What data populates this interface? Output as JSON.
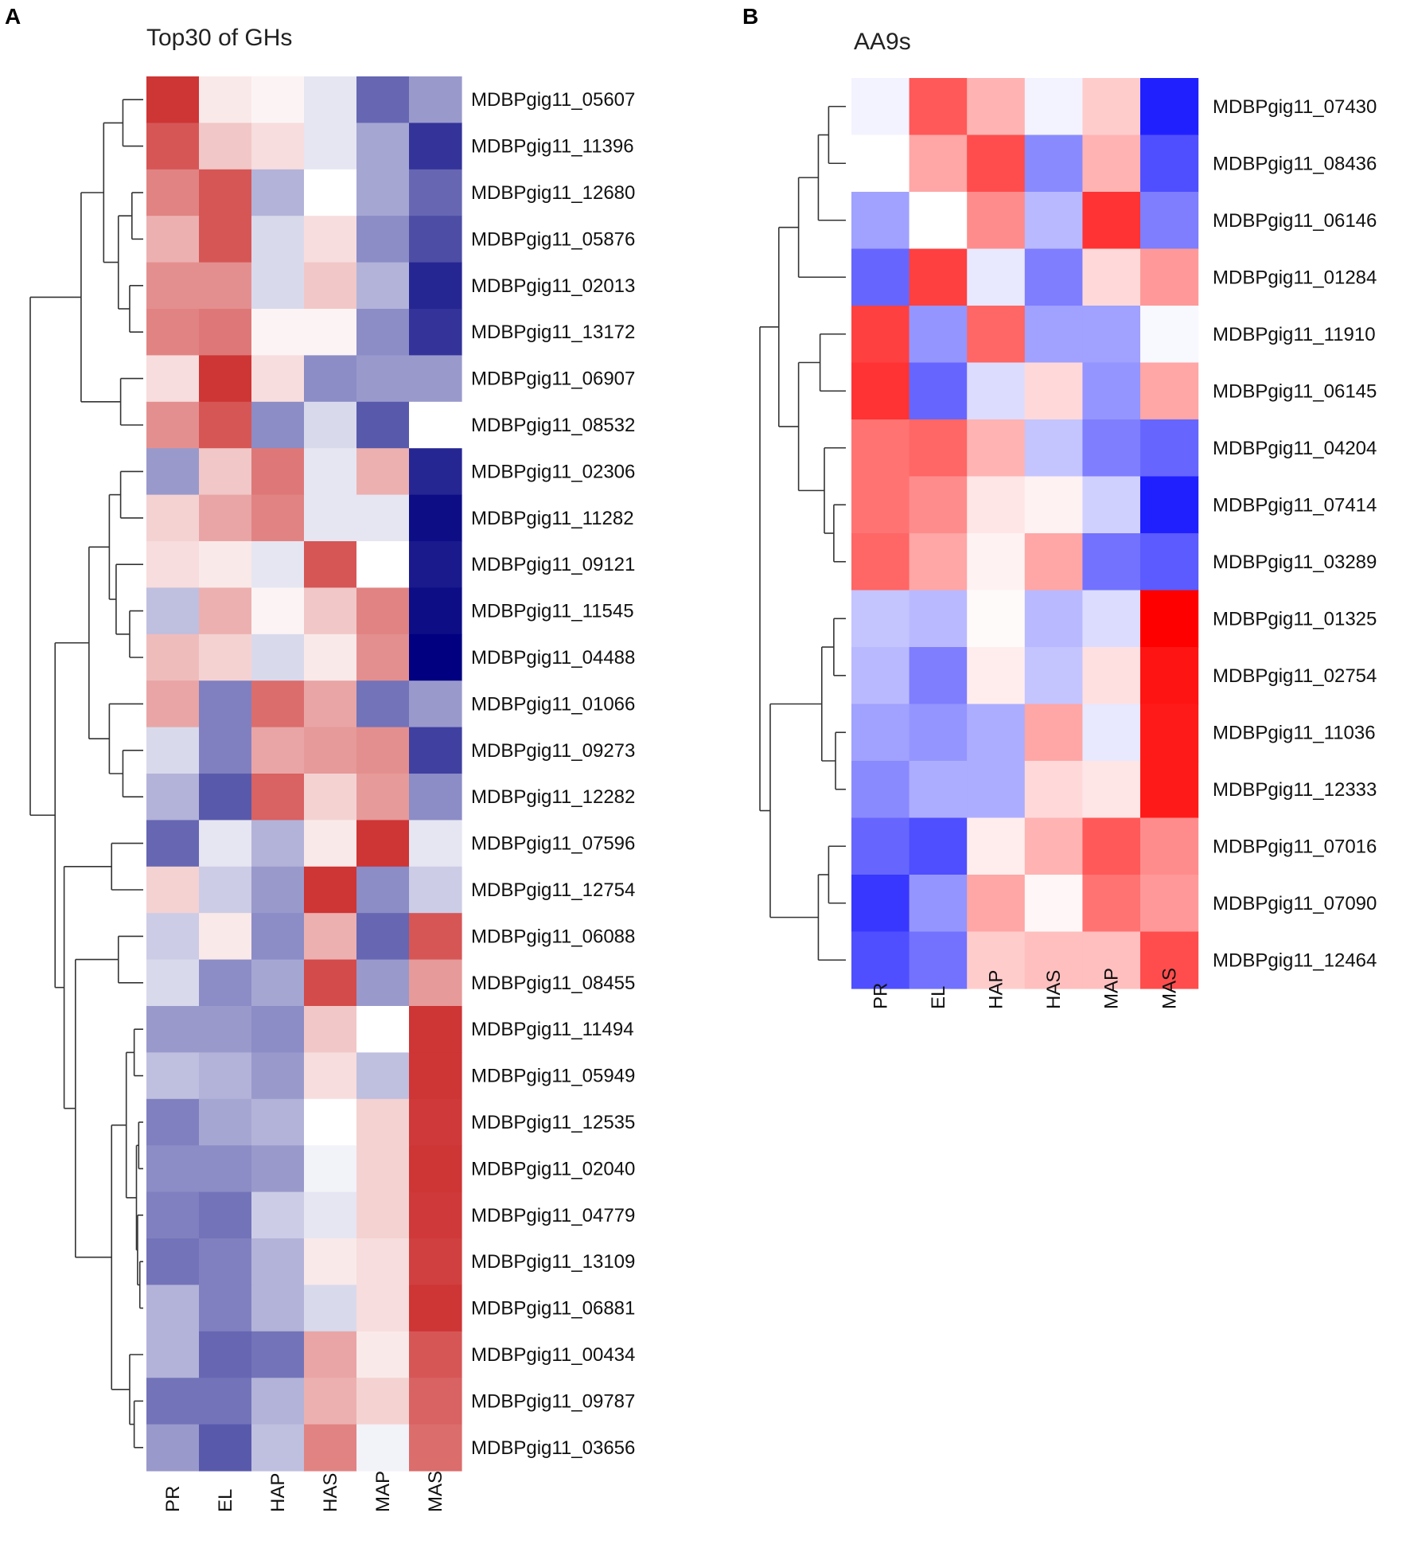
{
  "chart_data": [
    {
      "type": "heatmap",
      "panel": "A",
      "title": "Top30 of GHs",
      "columns": [
        "PR",
        "EL",
        "HAP",
        "HAS",
        "MAP",
        "MAS"
      ],
      "rows": [
        "MDBPgig11_05607",
        "MDBPgig11_11396",
        "MDBPgig11_12680",
        "MDBPgig11_05876",
        "MDBPgig11_02013",
        "MDBPgig11_13172",
        "MDBPgig11_06907",
        "MDBPgig11_08532",
        "MDBPgig11_02306",
        "MDBPgig11_11282",
        "MDBPgig11_09121",
        "MDBPgig11_11545",
        "MDBPgig11_04488",
        "MDBPgig11_01066",
        "MDBPgig11_09273",
        "MDBPgig11_12282",
        "MDBPgig11_07596",
        "MDBPgig11_12754",
        "MDBPgig11_06088",
        "MDBPgig11_08455",
        "MDBPgig11_11494",
        "MDBPgig11_05949",
        "MDBPgig11_12535",
        "MDBPgig11_02040",
        "MDBPgig11_04779",
        "MDBPgig11_13109",
        "MDBPgig11_06881",
        "MDBPgig11_00434",
        "MDBPgig11_09787",
        "MDBPgig11_03656"
      ],
      "scale": {
        "min": -1,
        "max": 1,
        "low_color": "#000080",
        "mid_color": "#ffffff",
        "high_color": "#c81e1e"
      },
      "values": [
        [
          0.9,
          0.1,
          0.05,
          -0.1,
          -0.6,
          -0.4
        ],
        [
          0.75,
          0.25,
          0.15,
          -0.1,
          -0.35,
          -0.8
        ],
        [
          0.55,
          0.75,
          -0.3,
          0.0,
          -0.35,
          -0.6
        ],
        [
          0.35,
          0.75,
          -0.15,
          0.15,
          -0.45,
          -0.7
        ],
        [
          0.5,
          0.5,
          -0.15,
          0.25,
          -0.3,
          -0.85
        ],
        [
          0.55,
          0.6,
          0.05,
          0.05,
          -0.45,
          -0.8
        ],
        [
          0.15,
          0.9,
          0.15,
          -0.45,
          -0.4,
          -0.4
        ],
        [
          0.5,
          0.75,
          -0.45,
          -0.15,
          -0.65,
          0.0
        ],
        [
          -0.4,
          0.25,
          0.6,
          -0.1,
          0.35,
          -0.85
        ],
        [
          0.2,
          0.4,
          0.55,
          -0.1,
          -0.1,
          -0.95
        ],
        [
          0.15,
          0.1,
          -0.1,
          0.75,
          0.0,
          -0.9
        ],
        [
          -0.25,
          0.35,
          0.05,
          0.25,
          0.55,
          -0.95
        ],
        [
          0.3,
          0.2,
          -0.15,
          0.1,
          0.5,
          -1.0
        ],
        [
          0.4,
          -0.5,
          0.65,
          0.4,
          -0.55,
          -0.4
        ],
        [
          -0.15,
          -0.5,
          0.4,
          0.45,
          0.5,
          -0.75
        ],
        [
          -0.3,
          -0.65,
          0.7,
          0.2,
          0.45,
          -0.45
        ],
        [
          -0.6,
          -0.1,
          -0.3,
          0.1,
          0.9,
          -0.1
        ],
        [
          0.2,
          -0.2,
          -0.4,
          0.9,
          -0.45,
          -0.2
        ],
        [
          -0.2,
          0.1,
          -0.45,
          0.35,
          -0.6,
          0.75
        ],
        [
          -0.15,
          -0.45,
          -0.35,
          0.8,
          -0.4,
          0.45
        ],
        [
          -0.4,
          -0.4,
          -0.45,
          0.25,
          0.0,
          0.9
        ],
        [
          -0.25,
          -0.3,
          -0.4,
          0.15,
          -0.25,
          0.9
        ],
        [
          -0.5,
          -0.35,
          -0.3,
          0.0,
          0.2,
          0.88
        ],
        [
          -0.45,
          -0.45,
          -0.4,
          -0.05,
          0.2,
          0.9
        ],
        [
          -0.5,
          -0.55,
          -0.2,
          -0.1,
          0.2,
          0.88
        ],
        [
          -0.55,
          -0.5,
          -0.3,
          0.1,
          0.15,
          0.85
        ],
        [
          -0.3,
          -0.5,
          -0.3,
          -0.15,
          0.15,
          0.9
        ],
        [
          -0.3,
          -0.6,
          -0.55,
          0.4,
          0.1,
          0.75
        ],
        [
          -0.55,
          -0.55,
          -0.3,
          0.35,
          0.2,
          0.7
        ],
        [
          -0.4,
          -0.65,
          -0.25,
          0.55,
          -0.05,
          0.65
        ]
      ]
    },
    {
      "type": "heatmap",
      "panel": "B",
      "title": "AA9s",
      "columns": [
        "PR",
        "EL",
        "HAP",
        "HAS",
        "MAP",
        "MAS"
      ],
      "rows": [
        "MDBPgig11_07430",
        "MDBPgig11_08436",
        "MDBPgig11_06146",
        "MDBPgig11_01284",
        "MDBPgig11_11910",
        "MDBPgig11_06145",
        "MDBPgig11_04204",
        "MDBPgig11_07414",
        "MDBPgig11_03289",
        "MDBPgig11_01325",
        "MDBPgig11_02754",
        "MDBPgig11_11036",
        "MDBPgig11_12333",
        "MDBPgig11_07016",
        "MDBPgig11_07090",
        "MDBPgig11_12464"
      ],
      "scale": {
        "min": -1,
        "max": 1,
        "low_color": "#1414ff",
        "mid_color": "#ffffff",
        "high_color": "#ff0000"
      },
      "values": [
        [
          -0.05,
          0.65,
          0.3,
          -0.05,
          0.2,
          -0.95
        ],
        [
          0.0,
          0.35,
          0.7,
          -0.5,
          0.3,
          -0.75
        ],
        [
          -0.4,
          0.0,
          0.45,
          -0.3,
          0.8,
          -0.55
        ],
        [
          -0.65,
          0.75,
          -0.1,
          -0.55,
          0.15,
          0.4
        ],
        [
          0.75,
          -0.45,
          0.6,
          -0.4,
          -0.4,
          -0.03
        ],
        [
          0.8,
          -0.65,
          -0.15,
          0.15,
          -0.45,
          0.35
        ],
        [
          0.55,
          0.6,
          0.3,
          -0.25,
          -0.55,
          -0.65
        ],
        [
          0.55,
          0.45,
          0.1,
          0.05,
          -0.2,
          -0.95
        ],
        [
          0.6,
          0.35,
          0.05,
          0.35,
          -0.6,
          -0.7
        ],
        [
          -0.25,
          -0.3,
          0.02,
          -0.3,
          -0.15,
          1.0
        ],
        [
          -0.3,
          -0.55,
          0.07,
          -0.25,
          0.12,
          0.92
        ],
        [
          -0.4,
          -0.45,
          -0.35,
          0.35,
          -0.1,
          0.9
        ],
        [
          -0.5,
          -0.35,
          -0.35,
          0.15,
          0.1,
          0.9
        ],
        [
          -0.65,
          -0.75,
          0.07,
          0.3,
          0.65,
          0.45
        ],
        [
          -0.85,
          -0.45,
          0.35,
          0.03,
          0.55,
          0.4
        ],
        [
          -0.75,
          -0.6,
          0.2,
          0.25,
          0.25,
          0.7
        ]
      ]
    }
  ],
  "panels": {
    "a": {
      "letter": "A"
    },
    "b": {
      "letter": "B"
    }
  }
}
